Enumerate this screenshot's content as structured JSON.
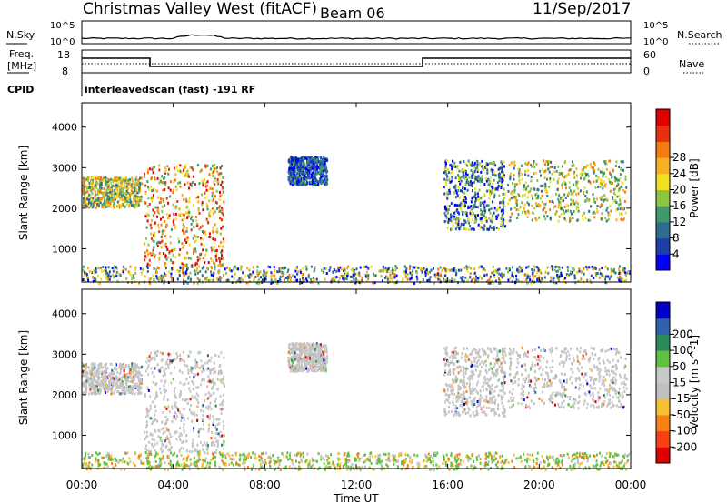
{
  "header": {
    "site": "Christmas Valley West (fitACF)",
    "beam": "Beam 06",
    "date": "11/Sep/2017"
  },
  "params": {
    "nsky_label": "N.Sky",
    "nsearch_label": "N.Search",
    "freq_label_1": "Freq.",
    "freq_label_2": "[MHz]",
    "nave_label": "Nave",
    "cpid_label": "CPID",
    "cpid_value": "interleavedscan (fast) -191 RF",
    "noise_ticks": [
      "10^5",
      "10^0"
    ],
    "freq_ticks": [
      "18",
      "8"
    ],
    "nave_ticks": [
      "60",
      "0"
    ]
  },
  "colors": {
    "power": [
      "#0000ff",
      "#1f3fa8",
      "#2d6e90",
      "#3d9a6a",
      "#8cc63f",
      "#f0e020",
      "#f8b020",
      "#f57a10",
      "#e83010",
      "#e00000"
    ],
    "velocity": [
      "#e00000",
      "#f84010",
      "#f88010",
      "#f8c030",
      "#c0c0c0",
      "#c8c8c8",
      "#60c040",
      "#2a8a5a",
      "#3060b0",
      "#0000cc"
    ]
  },
  "chart_data": [
    {
      "type": "heatmap",
      "panel": "power",
      "ylabel": "Slant Range [km]",
      "xlabel": "Time UT",
      "x_ticks": [
        "00:00",
        "04:00",
        "08:00",
        "12:00",
        "16:00",
        "20:00",
        "00:00"
      ],
      "y_ticks": [
        1000,
        2000,
        3000,
        4000
      ],
      "ylim": [
        180,
        4600
      ],
      "xlim_hours": [
        0,
        24
      ],
      "colorbar_label": "Power [dB]",
      "colorbar_ticks": [
        "4",
        "8",
        "12",
        "16",
        "20",
        "24",
        "28"
      ],
      "regions": [
        {
          "t0": 0.0,
          "t1": 2.6,
          "r0": 2050,
          "r1": 2800,
          "level": "high"
        },
        {
          "t0": 2.7,
          "t1": 6.2,
          "r0": 600,
          "r1": 3100,
          "level": "very-high"
        },
        {
          "t0": 9.0,
          "t1": 10.7,
          "r0": 2600,
          "r1": 3300,
          "level": "low"
        },
        {
          "t0": 15.8,
          "t1": 18.5,
          "r0": 1500,
          "r1": 3200,
          "level": "mid"
        },
        {
          "t0": 18.6,
          "t1": 23.8,
          "r0": 1700,
          "r1": 3200,
          "level": "high"
        },
        {
          "t0": 0.0,
          "t1": 24.0,
          "r0": 180,
          "r1": 600,
          "level": "ground"
        }
      ]
    },
    {
      "type": "heatmap",
      "panel": "velocity",
      "ylabel": "Slant Range [km]",
      "xlabel": "Time UT",
      "x_ticks": [
        "00:00",
        "04:00",
        "08:00",
        "12:00",
        "16:00",
        "20:00",
        "00:00"
      ],
      "y_ticks": [
        1000,
        2000,
        3000,
        4000
      ],
      "ylim": [
        180,
        4600
      ],
      "xlim_hours": [
        0,
        24
      ],
      "colorbar_label": "Velocity [m s^-1]",
      "colorbar_ticks": [
        "-200",
        "-100",
        "-50",
        "-15",
        "15",
        "50",
        "100",
        "200"
      ],
      "regions": [
        {
          "t0": 0.0,
          "t1": 2.6,
          "r0": 2050,
          "r1": 2800,
          "level": "ground-scatter"
        },
        {
          "t0": 2.7,
          "t1": 6.2,
          "r0": 600,
          "r1": 3100,
          "level": "ground-scatter"
        },
        {
          "t0": 9.0,
          "t1": 10.7,
          "r0": 2600,
          "r1": 3300,
          "level": "ground-scatter"
        },
        {
          "t0": 15.8,
          "t1": 18.5,
          "r0": 1500,
          "r1": 3200,
          "level": "ground-scatter"
        },
        {
          "t0": 18.6,
          "t1": 23.8,
          "r0": 1700,
          "r1": 3200,
          "level": "ground-scatter"
        },
        {
          "t0": 0.0,
          "t1": 24.0,
          "r0": 180,
          "r1": 600,
          "level": "positive"
        }
      ]
    }
  ]
}
